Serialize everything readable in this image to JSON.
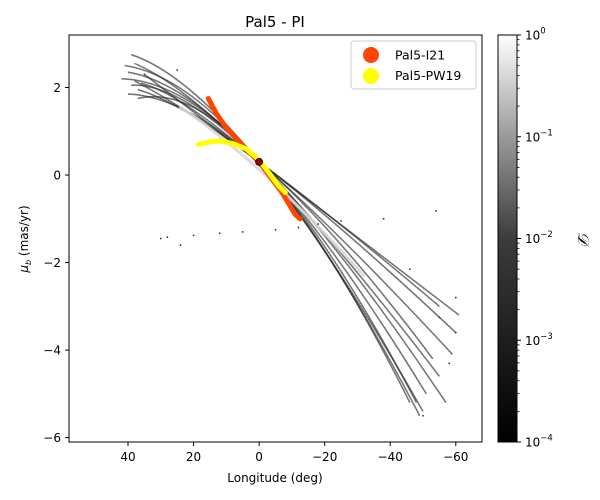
{
  "chart_data": {
    "type": "scatter",
    "title": "Pal5 - PI",
    "xlabel": "Longitude (deg)",
    "ylabel": "μ_b (mas/yr)",
    "ylabel_main": "μ",
    "ylabel_sub": "b",
    "ylabel_rest": " (mas/yr)",
    "xlim": [
      58,
      -68
    ],
    "ylim": [
      -6.1,
      3.2
    ],
    "grid": false,
    "x_ticks": [
      40,
      20,
      0,
      -20,
      -40,
      -60
    ],
    "x_tick_labels": [
      "40",
      "20",
      "0",
      "−20",
      "−40",
      "−60"
    ],
    "y_ticks": [
      2,
      0,
      -2,
      -4,
      -6
    ],
    "y_tick_labels": [
      "2",
      "0",
      "−2",
      "−4",
      "−6"
    ],
    "legend": {
      "position": "top-right",
      "entries": [
        {
          "label": "Pal5-I21",
          "color": "#ff4500"
        },
        {
          "label": "Pal5-PW19",
          "color": "#ffff00"
        }
      ]
    },
    "colorbar": {
      "label": "𝒟",
      "scale": "log",
      "min": 0.0001,
      "max": 1,
      "colormap": "gray",
      "ticks": [
        {
          "value": 1,
          "base": "10",
          "exp": "0"
        },
        {
          "value": 0.1,
          "base": "10",
          "exp": "−1"
        },
        {
          "value": 0.01,
          "base": "10",
          "exp": "−2"
        },
        {
          "value": 0.001,
          "base": "10",
          "exp": "−3"
        },
        {
          "value": 0.0001,
          "base": "10",
          "exp": "−4"
        }
      ]
    },
    "series": [
      {
        "name": "Pal5-I21",
        "kind": "track",
        "color": "#ff4500",
        "points": [
          [
            15.5,
            1.75
          ],
          [
            13,
            1.4
          ],
          [
            10,
            1.08
          ],
          [
            6,
            0.75
          ],
          [
            2,
            0.45
          ],
          [
            -1,
            0.2
          ],
          [
            -4,
            -0.1
          ],
          [
            -7,
            -0.4
          ],
          [
            -9,
            -0.65
          ],
          [
            -11,
            -0.9
          ],
          [
            -12.5,
            -1.0
          ]
        ]
      },
      {
        "name": "Pal5-PW19",
        "kind": "track",
        "color": "#ffff00",
        "points": [
          [
            18.5,
            0.7
          ],
          [
            15,
            0.76
          ],
          [
            12,
            0.78
          ],
          [
            8,
            0.72
          ],
          [
            4,
            0.6
          ],
          [
            0,
            0.35
          ],
          [
            -3,
            0.05
          ],
          [
            -6,
            -0.25
          ],
          [
            -8,
            -0.4
          ]
        ]
      },
      {
        "name": "Pal5 cluster",
        "kind": "marker",
        "color": "#8b0000",
        "points": [
          [
            0,
            0.3
          ]
        ]
      },
      {
        "name": "stream trails",
        "kind": "trails",
        "trails": [
          {
            "start": [
              39,
              2.75
            ],
            "end": [
              -50,
              -5.4
            ]
          },
          {
            "start": [
              41,
              2.5
            ],
            "end": [
              -49,
              -5.5
            ]
          },
          {
            "start": [
              42,
              2.2
            ],
            "end": [
              -48,
              -5.2
            ]
          },
          {
            "start": [
              40,
              2.35
            ],
            "end": [
              -51,
              -5.0
            ]
          },
          {
            "start": [
              38,
              2.55
            ],
            "end": [
              -55,
              -4.6
            ]
          },
          {
            "start": [
              39,
              2.05
            ],
            "end": [
              -57,
              -5.2
            ]
          },
          {
            "start": [
              40,
              1.85
            ],
            "end": [
              -53,
              -4.2
            ]
          },
          {
            "start": [
              36,
              2.1
            ],
            "end": [
              -59,
              -4.1
            ]
          },
          {
            "start": [
              37,
              1.95
            ],
            "end": [
              -60,
              -3.6
            ]
          },
          {
            "start": [
              35,
              2.3
            ],
            "end": [
              -61,
              -3.2
            ]
          },
          {
            "start": [
              38,
              2.15
            ],
            "end": [
              -55,
              -3.0
            ]
          },
          {
            "start": [
              37,
              1.75
            ],
            "end": [
              -46,
              -5.2
            ]
          }
        ],
        "scatter": [
          [
            -54,
            -0.82
          ],
          [
            -38,
            -1.0
          ],
          [
            -25,
            -1.05
          ],
          [
            -18,
            -1.12
          ],
          [
            -12,
            -1.2
          ],
          [
            -5,
            -1.25
          ],
          [
            5,
            -1.3
          ],
          [
            12,
            -1.33
          ],
          [
            20,
            -1.38
          ],
          [
            28,
            -1.42
          ],
          [
            24,
            -1.6
          ],
          [
            30,
            -1.45
          ],
          [
            -60,
            -2.8
          ],
          [
            -46,
            -2.15
          ],
          [
            25,
            2.4
          ],
          [
            35,
            2.3
          ],
          [
            -55,
            -3.25
          ],
          [
            -60,
            -3.6
          ],
          [
            -58,
            -4.3
          ],
          [
            -50,
            -5.5
          ]
        ]
      }
    ]
  }
}
